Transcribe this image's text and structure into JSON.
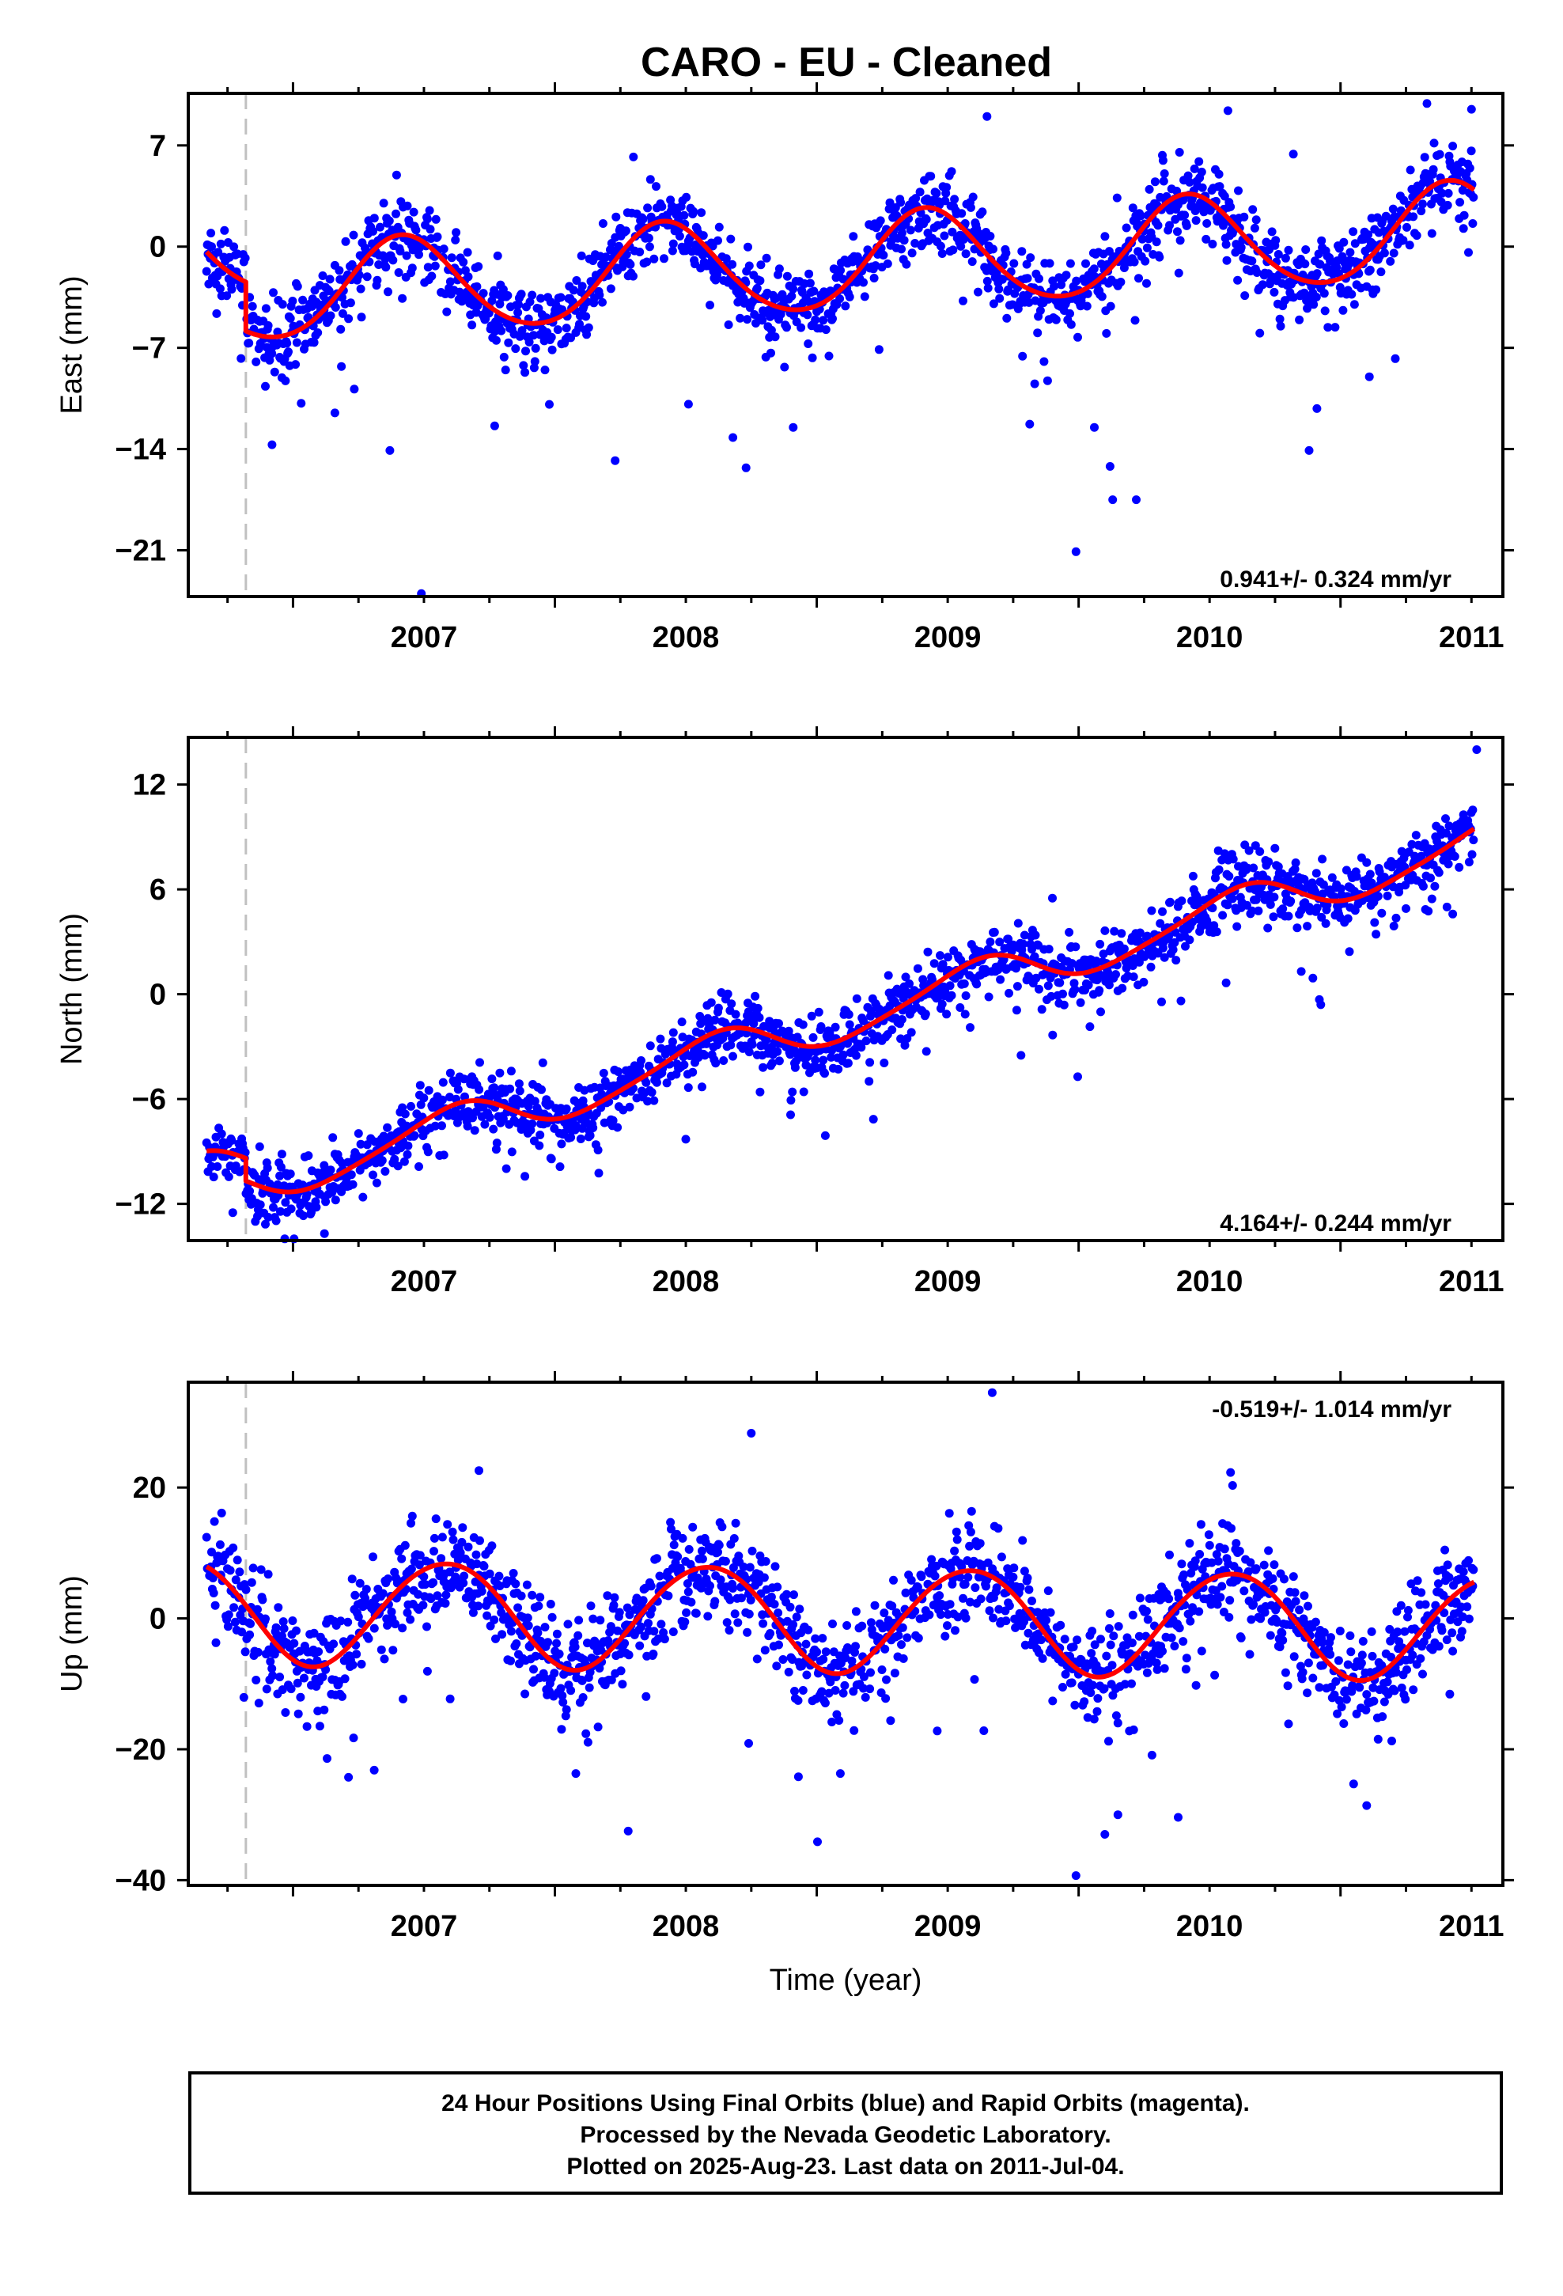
{
  "colors": {
    "final_orbits": "#0000ff",
    "model_fit": "#ff0000",
    "event_marker": "#c0c0c0",
    "frame": "#000000"
  },
  "chart_data": [
    {
      "type": "scatter",
      "component": "east",
      "title": "CARO  - EU - Cleaned",
      "xlabel": "",
      "ylabel": "East (mm)",
      "xlim": [
        2006.6,
        2011.62
      ],
      "ylim": [
        -24.2,
        10.6
      ],
      "xticks": [
        2007,
        2008,
        2009,
        2010,
        2011
      ],
      "yticks": [
        7,
        0,
        -7,
        -14,
        -21
      ],
      "ytick_labels": [
        "7",
        "0",
        "−7",
        "−14",
        "−21"
      ],
      "rate_label": "0.941+/- 0.324 mm/yr",
      "event_marker_x": 2006.82,
      "data_start": 2006.67,
      "data_end": 2011.51,
      "model": {
        "offset_before": -2.6,
        "offset_after": -6.0,
        "trend_mm_per_yr": 0.941,
        "ref_epoch": 2006.82,
        "annual_amp": 3.3,
        "annual_peak": 0.42,
        "semiannual_amp": 0.3,
        "semiannual_phase": 0.9
      },
      "series": [
        {
          "name": "24 Hour Positions (Final Orbits)",
          "kind": "scatter",
          "scatter_sigma": 1.3,
          "outliers": [
            {
              "x": 2007.49,
              "y": -24.0
            },
            {
              "x": 2009.99,
              "y": -21.1
            },
            {
              "x": 2010.13,
              "y": -17.5
            },
            {
              "x": 2010.22,
              "y": -17.5
            },
            {
              "x": 2010.12,
              "y": -15.2
            },
            {
              "x": 2008.73,
              "y": -15.3
            },
            {
              "x": 2008.23,
              "y": -14.8
            },
            {
              "x": 2007.37,
              "y": -14.1
            },
            {
              "x": 2010.88,
              "y": -14.1
            },
            {
              "x": 2006.92,
              "y": -13.7
            },
            {
              "x": 2008.68,
              "y": -13.2
            },
            {
              "x": 2007.77,
              "y": -12.4
            },
            {
              "x": 2007.16,
              "y": -11.5
            },
            {
              "x": 2008.91,
              "y": -12.5
            },
            {
              "x": 2010.91,
              "y": -11.2
            },
            {
              "x": 2010.06,
              "y": -12.5
            },
            {
              "x": 2008.51,
              "y": -10.9
            },
            {
              "x": 2011.11,
              "y": -9.0
            },
            {
              "x": 2009.65,
              "y": 9.0
            },
            {
              "x": 2010.57,
              "y": 9.4
            },
            {
              "x": 2011.33,
              "y": 9.9
            },
            {
              "x": 2011.5,
              "y": 9.5
            },
            {
              "x": 2010.82,
              "y": 6.4
            },
            {
              "x": 2008.3,
              "y": 6.2
            }
          ]
        },
        {
          "name": "Model Fit",
          "kind": "line"
        }
      ]
    },
    {
      "type": "scatter",
      "component": "north",
      "title": "",
      "xlabel": "",
      "ylabel": "North (mm)",
      "xlim": [
        2006.6,
        2011.62
      ],
      "ylim": [
        -14.1,
        14.7
      ],
      "xticks": [
        2007,
        2008,
        2009,
        2010,
        2011
      ],
      "yticks": [
        12,
        6,
        0,
        -6,
        -12
      ],
      "ytick_labels": [
        "12",
        "6",
        "0",
        "−6",
        "−12"
      ],
      "rate_label": "4.164+/- 0.244 mm/yr",
      "event_marker_x": 2006.82,
      "data_start": 2006.67,
      "data_end": 2011.51,
      "model": {
        "offset_before": -9.4,
        "offset_after": -10.7,
        "trend_mm_per_yr": 4.164,
        "ref_epoch": 2006.82,
        "annual_amp": 1.2,
        "annual_peak": 0.6,
        "semiannual_amp": 0.2,
        "semiannual_phase": 0.2
      },
      "series": [
        {
          "name": "24 Hour Positions (Final Orbits)",
          "kind": "scatter",
          "scatter_sigma": 0.9,
          "outliers": [
            {
              "x": 2007.12,
              "y": -13.7
            },
            {
              "x": 2006.77,
              "y": -12.5
            },
            {
              "x": 2009.9,
              "y": 5.5
            },
            {
              "x": 2011.52,
              "y": 14.0
            },
            {
              "x": 2008.5,
              "y": -8.3
            },
            {
              "x": 2008.9,
              "y": -6.9
            },
            {
              "x": 2009.78,
              "y": -3.5
            },
            {
              "x": 2010.85,
              "y": 1.3
            },
            {
              "x": 2011.25,
              "y": 4.9
            },
            {
              "x": 2007.32,
              "y": -10.8
            }
          ]
        },
        {
          "name": "Model Fit",
          "kind": "line"
        }
      ]
    },
    {
      "type": "scatter",
      "component": "up",
      "title": "",
      "xlabel": "Time (year)",
      "ylabel": "Up (mm)",
      "xlim": [
        2006.6,
        2011.62
      ],
      "ylim": [
        -40.8,
        36.1
      ],
      "xticks": [
        2007,
        2008,
        2009,
        2010,
        2011
      ],
      "yticks": [
        20,
        0,
        -20,
        -40
      ],
      "ytick_labels": [
        "20",
        "0",
        "−20",
        "−40"
      ],
      "rate_label": "-0.519+/- 1.014 mm/yr",
      "event_marker_x": 2006.82,
      "data_start": 2006.67,
      "data_end": 2011.51,
      "model": {
        "offset_before": 1.6,
        "offset_after": 1.6,
        "trend_mm_per_yr": -0.519,
        "ref_epoch": 2006.82,
        "annual_amp": 8.0,
        "annual_peak": 0.58,
        "semiannual_amp": 0.4,
        "semiannual_phase": 0.3
      },
      "series": [
        {
          "name": "24 Hour Positions (Final Orbits)",
          "kind": "scatter",
          "scatter_sigma": 3.8,
          "outliers": [
            {
              "x": 2009.67,
              "y": 34.5
            },
            {
              "x": 2008.75,
              "y": 28.3
            },
            {
              "x": 2009.99,
              "y": -39.3
            },
            {
              "x": 2008.28,
              "y": -32.5
            },
            {
              "x": 2010.15,
              "y": -30.0
            },
            {
              "x": 2010.38,
              "y": -30.4
            },
            {
              "x": 2010.1,
              "y": -33.0
            },
            {
              "x": 2011.1,
              "y": -28.6
            },
            {
              "x": 2007.31,
              "y": -23.2
            },
            {
              "x": 2008.08,
              "y": -23.7
            },
            {
              "x": 2008.93,
              "y": -24.2
            },
            {
              "x": 2009.09,
              "y": -23.7
            },
            {
              "x": 2010.58,
              "y": 22.3
            },
            {
              "x": 2007.71,
              "y": 22.6
            },
            {
              "x": 2007.13,
              "y": -21.4
            },
            {
              "x": 2009.46,
              "y": -17.2
            },
            {
              "x": 2008.74,
              "y": -19.1
            },
            {
              "x": 2011.05,
              "y": -25.3
            },
            {
              "x": 2010.28,
              "y": -20.9
            },
            {
              "x": 2007.6,
              "y": -12.3
            }
          ]
        },
        {
          "name": "Model Fit",
          "kind": "line"
        }
      ]
    }
  ],
  "footer": {
    "line1": "24 Hour Positions Using Final Orbits (blue) and Rapid Orbits (magenta).",
    "line2": "Processed by the Nevada Geodetic Laboratory.",
    "line3": "Plotted on 2025-Aug-23. Last data on 2011-Jul-04."
  }
}
